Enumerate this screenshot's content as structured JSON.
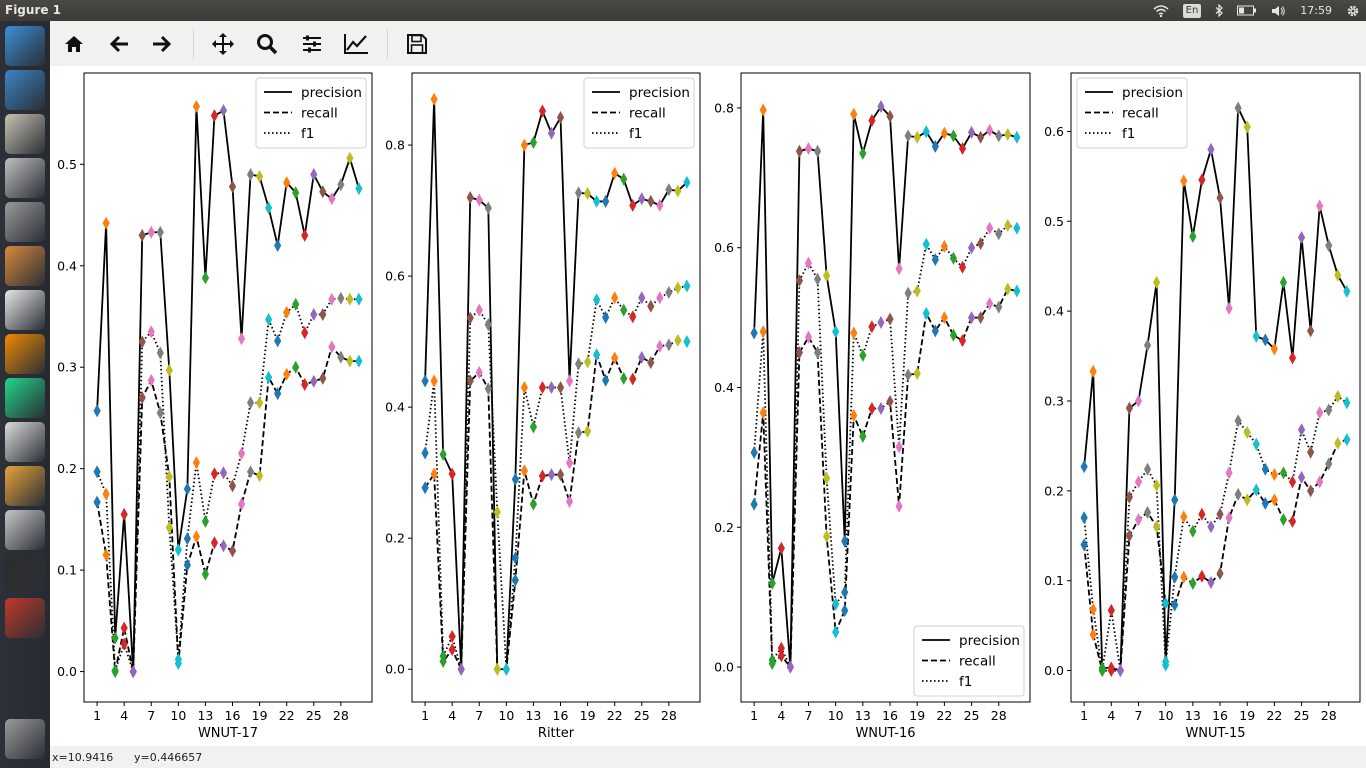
{
  "window": {
    "title": "Figure 1"
  },
  "tray": {
    "language": "En",
    "time": "17:59"
  },
  "launcher": {
    "items": [
      {
        "name": "ubuntu-dash-icon",
        "color": "#3c8fd6"
      },
      {
        "name": "browser-icon",
        "color": "#3d85c6"
      },
      {
        "name": "files-icon",
        "color": "#c9c2b3"
      },
      {
        "name": "drive-icon",
        "color": "#bfbfbf"
      },
      {
        "name": "camera-icon",
        "color": "#9a9a9a"
      },
      {
        "name": "photos-icon",
        "color": "#d98a3c"
      },
      {
        "name": "tex-icon",
        "color": "#e8e8e8"
      },
      {
        "name": "vlc-icon",
        "color": "#f08a00"
      },
      {
        "name": "pycharm-icon",
        "color": "#21d789"
      },
      {
        "name": "text-editor-icon",
        "color": "#dcdcdc"
      },
      {
        "name": "app-icon",
        "color": "#e8a33b"
      },
      {
        "name": "database-icon",
        "color": "#c8c8c8"
      },
      {
        "name": "terminal-icon",
        "color": "#2d2d2d"
      },
      {
        "name": "book-icon",
        "color": "#c0392b"
      },
      {
        "name": "trash-icon",
        "color": "#9a9a9a"
      }
    ]
  },
  "toolbar": {
    "buttons": [
      "home-icon",
      "back-arrow-icon",
      "forward-arrow-icon",
      "pan-icon",
      "zoom-icon",
      "configure-subplots-icon",
      "edit-axes-icon",
      "save-icon"
    ]
  },
  "status": {
    "x": "x=10.9416",
    "y": "y=0.446657"
  },
  "chart_data": [
    {
      "type": "line",
      "xlabel": "WNUT-17",
      "xticks": [
        1,
        4,
        7,
        10,
        13,
        16,
        19,
        22,
        25,
        28
      ],
      "ylim": [
        -0.03,
        0.59
      ],
      "yticks": [
        0.0,
        0.1,
        0.2,
        0.3,
        0.4,
        0.5
      ],
      "legend_loc": "upper-right",
      "series": [
        {
          "name": "precision",
          "dash": "solid",
          "values": [
            0.257,
            0.442,
            0.033,
            0.155,
            0.0,
            0.43,
            0.433,
            0.433,
            0.297,
            0.12,
            0.18,
            0.557,
            0.388,
            0.548,
            0.553,
            0.478,
            0.328,
            0.49,
            0.488,
            0.457,
            0.42,
            0.482,
            0.472,
            0.43,
            0.49,
            0.473,
            0.466,
            0.48,
            0.506,
            0.476
          ]
        },
        {
          "name": "recall",
          "dash": "dashed",
          "values": [
            0.167,
            0.115,
            0.0,
            0.043,
            0.0,
            0.27,
            0.287,
            0.255,
            0.192,
            0.008,
            0.105,
            0.133,
            0.096,
            0.127,
            0.124,
            0.119,
            0.165,
            0.197,
            0.193,
            0.29,
            0.274,
            0.293,
            0.3,
            0.283,
            0.286,
            0.289,
            0.32,
            0.31,
            0.306,
            0.306
          ]
        },
        {
          "name": "f1",
          "dash": "dotted",
          "values": [
            0.197,
            0.175,
            0.001,
            0.027,
            0.0,
            0.325,
            0.335,
            0.314,
            0.142,
            0.012,
            0.131,
            0.206,
            0.148,
            0.195,
            0.196,
            0.183,
            0.215,
            0.265,
            0.265,
            0.347,
            0.326,
            0.354,
            0.362,
            0.334,
            0.352,
            0.352,
            0.367,
            0.368,
            0.367,
            0.367
          ]
        }
      ]
    },
    {
      "type": "line",
      "xlabel": "Ritter",
      "xticks": [
        1,
        4,
        7,
        10,
        13,
        16,
        19,
        22,
        25,
        28
      ],
      "ylim": [
        -0.05,
        0.91
      ],
      "yticks": [
        0.0,
        0.2,
        0.4,
        0.6,
        0.8
      ],
      "legend_loc": "upper-right",
      "series": [
        {
          "name": "precision",
          "dash": "solid",
          "values": [
            0.44,
            0.87,
            0.328,
            0.298,
            0.0,
            0.72,
            0.716,
            0.704,
            0.0,
            0.0,
            0.29,
            0.8,
            0.804,
            0.852,
            0.818,
            0.842,
            0.44,
            0.727,
            0.726,
            0.714,
            0.714,
            0.757,
            0.748,
            0.708,
            0.718,
            0.714,
            0.708,
            0.732,
            0.73,
            0.743
          ]
        },
        {
          "name": "recall",
          "dash": "dashed",
          "values": [
            0.277,
            0.298,
            0.012,
            0.03,
            0.0,
            0.44,
            0.453,
            0.428,
            0.0,
            0.0,
            0.136,
            0.303,
            0.252,
            0.295,
            0.297,
            0.297,
            0.256,
            0.361,
            0.363,
            0.48,
            0.441,
            0.475,
            0.444,
            0.443,
            0.476,
            0.468,
            0.493,
            0.495,
            0.502,
            0.5
          ]
        },
        {
          "name": "f1",
          "dash": "dotted",
          "values": [
            0.33,
            0.44,
            0.02,
            0.05,
            0.0,
            0.536,
            0.548,
            0.526,
            0.24,
            0.0,
            0.17,
            0.43,
            0.37,
            0.43,
            0.43,
            0.43,
            0.315,
            0.466,
            0.469,
            0.564,
            0.537,
            0.567,
            0.548,
            0.538,
            0.567,
            0.554,
            0.567,
            0.575,
            0.582,
            0.585
          ]
        }
      ]
    },
    {
      "type": "line",
      "xlabel": "WNUT-16",
      "xticks": [
        1,
        4,
        7,
        10,
        13,
        16,
        19,
        22,
        25,
        28
      ],
      "ylim": [
        -0.05,
        0.85
      ],
      "yticks": [
        0.0,
        0.2,
        0.4,
        0.6,
        0.8
      ],
      "legend_loc": "lower-right",
      "series": [
        {
          "name": "precision",
          "dash": "solid",
          "values": [
            0.478,
            0.797,
            0.12,
            0.17,
            0.0,
            0.738,
            0.742,
            0.738,
            0.56,
            0.48,
            0.18,
            0.791,
            0.735,
            0.782,
            0.802,
            0.788,
            0.57,
            0.76,
            0.758,
            0.766,
            0.745,
            0.764,
            0.76,
            0.742,
            0.765,
            0.758,
            0.768,
            0.76,
            0.762,
            0.758
          ]
        },
        {
          "name": "recall",
          "dash": "dashed",
          "values": [
            0.233,
            0.364,
            0.005,
            0.016,
            0.0,
            0.45,
            0.472,
            0.45,
            0.187,
            0.05,
            0.081,
            0.36,
            0.33,
            0.37,
            0.37,
            0.38,
            0.23,
            0.418,
            0.42,
            0.506,
            0.481,
            0.5,
            0.475,
            0.467,
            0.5,
            0.5,
            0.52,
            0.515,
            0.541,
            0.538
          ]
        },
        {
          "name": "f1",
          "dash": "dotted",
          "values": [
            0.307,
            0.48,
            0.01,
            0.027,
            0.0,
            0.553,
            0.578,
            0.555,
            0.27,
            0.09,
            0.107,
            0.478,
            0.446,
            0.487,
            0.493,
            0.498,
            0.315,
            0.535,
            0.538,
            0.605,
            0.583,
            0.602,
            0.585,
            0.572,
            0.6,
            0.606,
            0.628,
            0.62,
            0.632,
            0.628
          ]
        }
      ]
    },
    {
      "type": "line",
      "xlabel": "WNUT-15",
      "xticks": [
        1,
        4,
        7,
        10,
        13,
        16,
        19,
        22,
        25,
        28
      ],
      "ylim": [
        -0.035,
        0.665
      ],
      "yticks": [
        0.0,
        0.1,
        0.2,
        0.3,
        0.4,
        0.5,
        0.6
      ],
      "legend_loc": "upper-left",
      "series": [
        {
          "name": "precision",
          "dash": "solid",
          "values": [
            0.227,
            0.333,
            0.003,
            0.003,
            0.0,
            0.292,
            0.3,
            0.362,
            0.432,
            0.01,
            0.19,
            0.545,
            0.483,
            0.546,
            0.58,
            0.526,
            0.403,
            0.626,
            0.605,
            0.372,
            0.368,
            0.358,
            0.432,
            0.348,
            0.482,
            0.378,
            0.517,
            0.473,
            0.44,
            0.422
          ]
        },
        {
          "name": "recall",
          "dash": "dashed",
          "values": [
            0.14,
            0.04,
            0.0,
            0.0,
            0.0,
            0.15,
            0.168,
            0.176,
            0.16,
            0.075,
            0.073,
            0.104,
            0.097,
            0.105,
            0.098,
            0.108,
            0.17,
            0.196,
            0.19,
            0.201,
            0.186,
            0.19,
            0.168,
            0.166,
            0.215,
            0.2,
            0.21,
            0.23,
            0.253,
            0.257
          ]
        },
        {
          "name": "f1",
          "dash": "dotted",
          "values": [
            0.17,
            0.068,
            0.0,
            0.067,
            0.0,
            0.193,
            0.21,
            0.224,
            0.206,
            0.006,
            0.104,
            0.171,
            0.155,
            0.174,
            0.16,
            0.174,
            0.22,
            0.278,
            0.265,
            0.252,
            0.224,
            0.218,
            0.22,
            0.21,
            0.268,
            0.243,
            0.287,
            0.29,
            0.305,
            0.298
          ]
        }
      ]
    }
  ]
}
